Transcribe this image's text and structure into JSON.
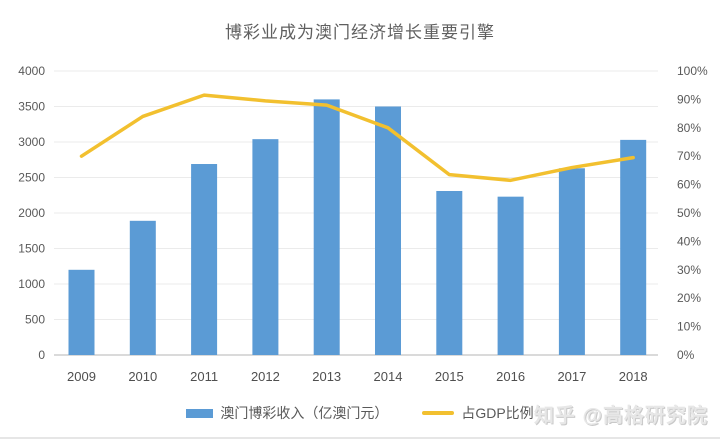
{
  "title": "博彩业成为澳门经济增长重要引擎",
  "watermark": "知乎 @高格研究院",
  "legend": {
    "bar_label": "澳门博彩收入（亿澳门元）",
    "line_label": "占GDP比例"
  },
  "colors": {
    "bar": "#5B9BD5",
    "line": "#F2C02F",
    "grid": "#ebebeb",
    "baseline": "#dadada",
    "axis_text": "#595959",
    "title_text": "#5f5f5f",
    "watermark_text": "#e7e7e7"
  },
  "chart_data": {
    "type": "bar",
    "title": "博彩业成为澳门经济增长重要引擎",
    "categories": [
      "2009",
      "2010",
      "2011",
      "2012",
      "2013",
      "2014",
      "2015",
      "2016",
      "2017",
      "2018"
    ],
    "series": [
      {
        "name": "澳门博彩收入（亿澳门元）",
        "type": "bar",
        "axis": "left",
        "values": [
          1200,
          1890,
          2690,
          3040,
          3600,
          3500,
          2310,
          2230,
          2630,
          3030
        ]
      },
      {
        "name": "占GDP比例",
        "type": "line",
        "axis": "right",
        "unit": "%",
        "values": [
          70,
          84,
          91.5,
          89.5,
          88,
          80,
          63.5,
          61.5,
          66,
          69.5
        ]
      }
    ],
    "left_axis": {
      "min": 0,
      "max": 4000,
      "step": 500,
      "tick_labels": [
        "0",
        "500",
        "1000",
        "1500",
        "2000",
        "2500",
        "3000",
        "3500",
        "4000"
      ]
    },
    "right_axis": {
      "min": 0,
      "max": 100,
      "step": 10,
      "tick_labels": [
        "0%",
        "10%",
        "20%",
        "30%",
        "40%",
        "50%",
        "60%",
        "70%",
        "80%",
        "90%",
        "100%"
      ]
    },
    "grid": true,
    "legend_position": "bottom"
  }
}
